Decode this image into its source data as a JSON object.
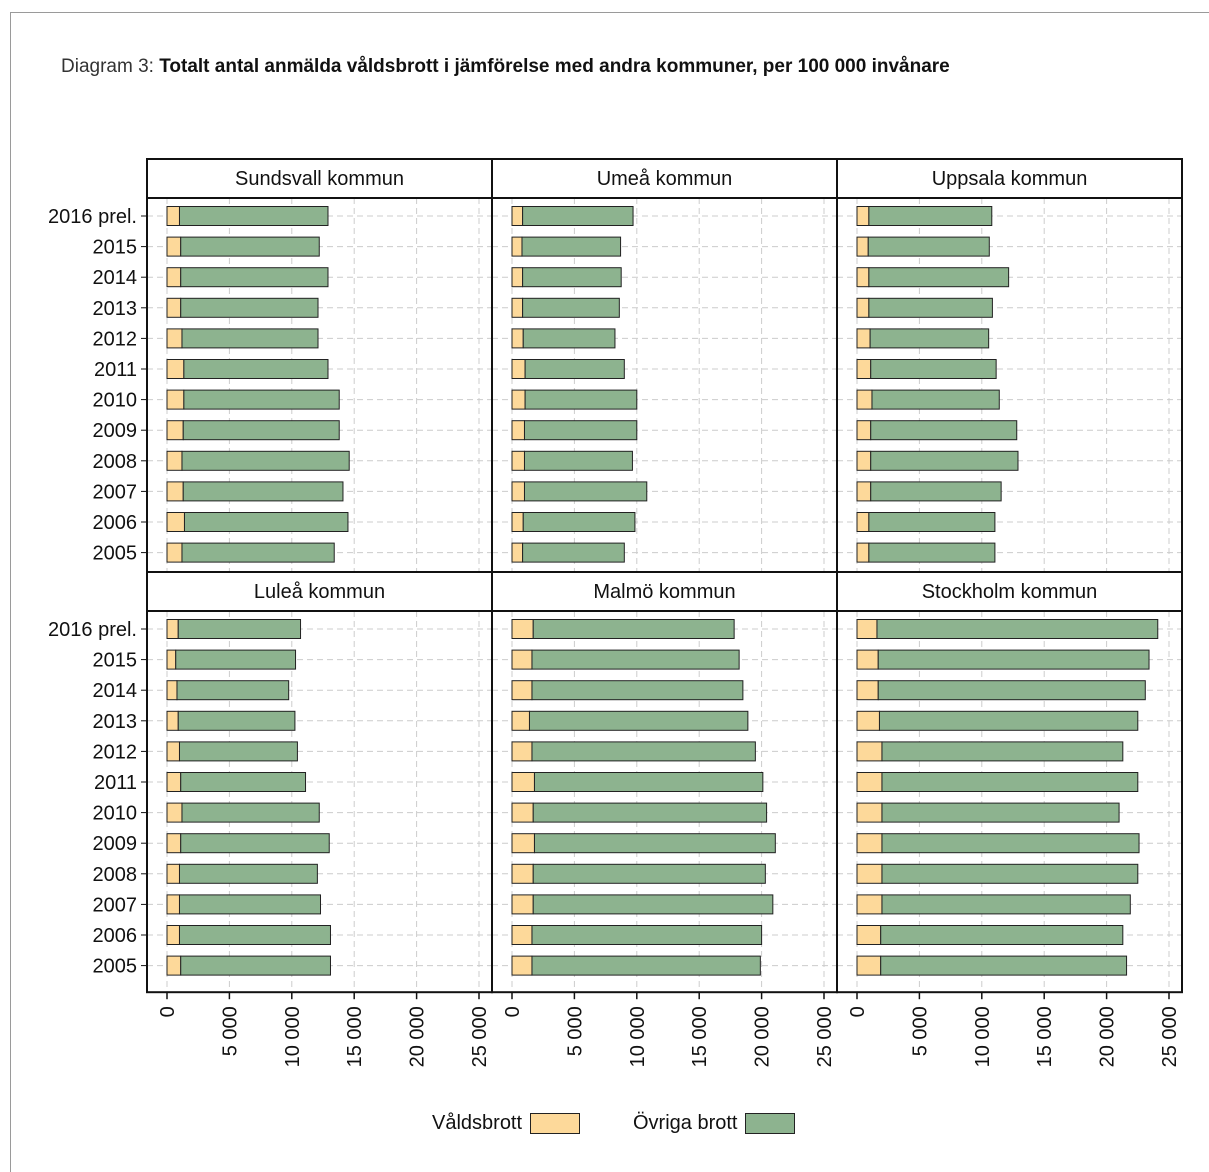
{
  "title": {
    "prefix": "Diagram 3: ",
    "main": "Totalt antal anmälda våldsbrott i jämförelse med andra kommuner, per 100 000 invånare"
  },
  "colors": {
    "valdsbrott": "#fdd99a",
    "ovriga": "#8db38f",
    "grid": "#cccccc",
    "frame": "#111111"
  },
  "legend": {
    "valdsbrott": "Våldsbrott",
    "ovriga": "Övriga brott"
  },
  "chart_data": {
    "type": "bar",
    "orientation": "horizontal",
    "stacked": true,
    "categories": [
      "2016 prel.",
      "2015",
      "2014",
      "2013",
      "2012",
      "2011",
      "2010",
      "2009",
      "2008",
      "2007",
      "2006",
      "2005"
    ],
    "xlim": [
      0,
      25000
    ],
    "xticks": [
      0,
      5000,
      10000,
      15000,
      20000,
      25000
    ],
    "xtick_labels": [
      "0",
      "5 000",
      "10 000",
      "15 000",
      "20 000",
      "25 000"
    ],
    "grid": true,
    "legend_position": "bottom",
    "panels": [
      {
        "name": "Sundsvall kommun",
        "series": [
          {
            "name": "Våldsbrott",
            "values": [
              1000,
              1100,
              1100,
              1100,
              1200,
              1350,
              1350,
              1300,
              1200,
              1300,
              1400,
              1200
            ]
          },
          {
            "name": "Övriga brott",
            "values": [
              11900,
              11100,
              11800,
              11000,
              10900,
              11550,
              12450,
              12500,
              13400,
              12800,
              13100,
              12200
            ]
          }
        ]
      },
      {
        "name": "Umeå kommun",
        "series": [
          {
            "name": "Våldsbrott",
            "values": [
              850,
              800,
              850,
              850,
              900,
              1050,
              1050,
              1000,
              1000,
              1000,
              900,
              850
            ]
          },
          {
            "name": "Övriga brott",
            "values": [
              8850,
              7900,
              7900,
              7750,
              7350,
              7950,
              8950,
              9000,
              8650,
              9800,
              8950,
              8150
            ]
          }
        ]
      },
      {
        "name": "Uppsala kommun",
        "series": [
          {
            "name": "Våldsbrott",
            "values": [
              950,
              900,
              950,
              950,
              1050,
              1100,
              1200,
              1100,
              1100,
              1100,
              950,
              950
            ]
          },
          {
            "name": "Övriga brott",
            "values": [
              9850,
              9700,
              11200,
              9900,
              9500,
              10050,
              10200,
              11700,
              11800,
              10450,
              10100,
              10100
            ]
          }
        ]
      },
      {
        "name": "Luleå kommun",
        "series": [
          {
            "name": "Våldsbrott",
            "values": [
              900,
              700,
              800,
              900,
              1000,
              1100,
              1200,
              1100,
              1000,
              1000,
              1000,
              1100
            ]
          },
          {
            "name": "Övriga brott",
            "values": [
              9800,
              9600,
              8950,
              9350,
              9450,
              10000,
              11000,
              11900,
              11050,
              11300,
              12100,
              12000
            ]
          }
        ]
      },
      {
        "name": "Malmö kommun",
        "series": [
          {
            "name": "Våldsbrott",
            "values": [
              1700,
              1600,
              1600,
              1400,
              1600,
              1800,
              1700,
              1800,
              1700,
              1700,
              1600,
              1600
            ]
          },
          {
            "name": "Övriga brott",
            "values": [
              16100,
              16600,
              16900,
              17500,
              17900,
              18300,
              18700,
              19300,
              18600,
              19200,
              18400,
              18300
            ]
          }
        ]
      },
      {
        "name": "Stockholm kommun",
        "series": [
          {
            "name": "Våldsbrott",
            "values": [
              1600,
              1700,
              1700,
              1800,
              2000,
              2000,
              2000,
              2000,
              2000,
              2000,
              1900,
              1900
            ]
          },
          {
            "name": "Övriga brott",
            "values": [
              22500,
              21700,
              21400,
              20700,
              19300,
              20500,
              19000,
              20600,
              20500,
              19900,
              19400,
              19700
            ]
          }
        ]
      }
    ]
  }
}
